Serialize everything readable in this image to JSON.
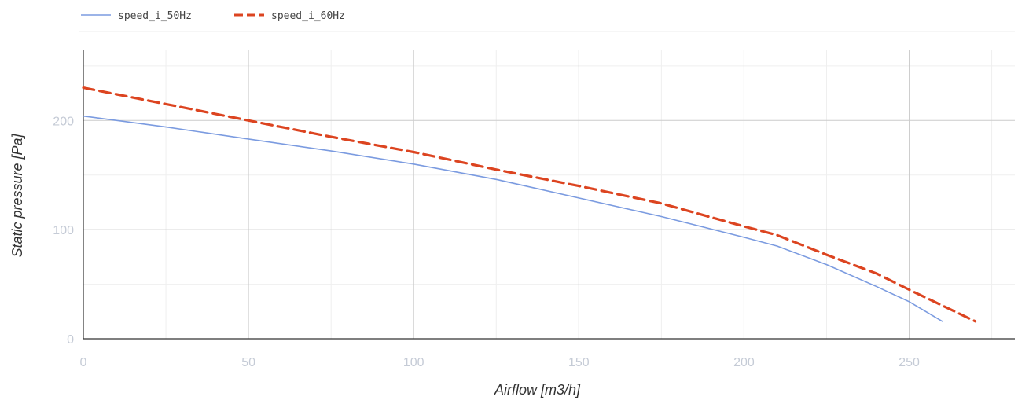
{
  "chart_data": {
    "type": "line",
    "xlabel": "Airflow [m3/h]",
    "ylabel": "Static pressure [Pa]",
    "xlim": [
      0,
      282
    ],
    "ylim": [
      0,
      265
    ],
    "x_ticks": [
      0,
      50,
      100,
      150,
      200,
      250
    ],
    "y_ticks": [
      0,
      100,
      200
    ],
    "legend_position": "top-left",
    "grid": true,
    "series": [
      {
        "name": "speed_i_50Hz",
        "color": "#7b9be0",
        "line_style": "solid",
        "points": [
          [
            0,
            204
          ],
          [
            25,
            194
          ],
          [
            50,
            183
          ],
          [
            75,
            172
          ],
          [
            100,
            160
          ],
          [
            125,
            146
          ],
          [
            150,
            129
          ],
          [
            175,
            112
          ],
          [
            200,
            93
          ],
          [
            210,
            85
          ],
          [
            225,
            68
          ],
          [
            240,
            48
          ],
          [
            250,
            34
          ],
          [
            260,
            16
          ]
        ]
      },
      {
        "name": "speed_i_60Hz",
        "color": "#dc4420",
        "line_style": "dashed",
        "points": [
          [
            0,
            230
          ],
          [
            25,
            215
          ],
          [
            50,
            200
          ],
          [
            75,
            185
          ],
          [
            100,
            171
          ],
          [
            125,
            155
          ],
          [
            150,
            140
          ],
          [
            175,
            124
          ],
          [
            200,
            103
          ],
          [
            210,
            95
          ],
          [
            225,
            77
          ],
          [
            240,
            60
          ],
          [
            250,
            45
          ],
          [
            270,
            16
          ]
        ]
      }
    ]
  }
}
